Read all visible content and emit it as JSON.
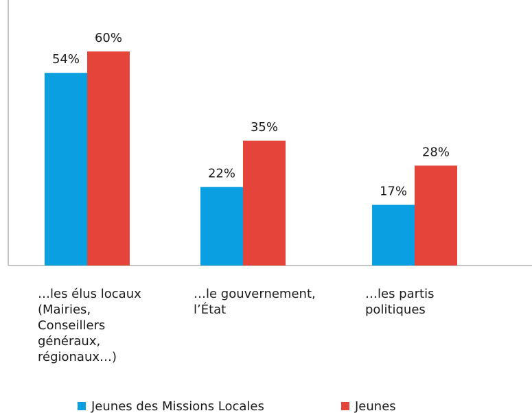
{
  "chart_data": {
    "type": "bar",
    "categories": [
      "…les élus locaux\n(Mairies,\nConseillers\ngénéraux,\nrégionaux…)",
      "…le gouvernement,\nl’État",
      "…les partis\npolitiques"
    ],
    "series": [
      {
        "name": "Jeunes des Missions Locales",
        "color": "#0a9fe0",
        "values": [
          54,
          22,
          17
        ],
        "value_labels": [
          "54%",
          "22%",
          "17%"
        ]
      },
      {
        "name": "Jeunes",
        "color": "#e5443a",
        "values": [
          60,
          35,
          28
        ],
        "value_labels": [
          "60%",
          "35%",
          "28%"
        ]
      }
    ]
  }
}
